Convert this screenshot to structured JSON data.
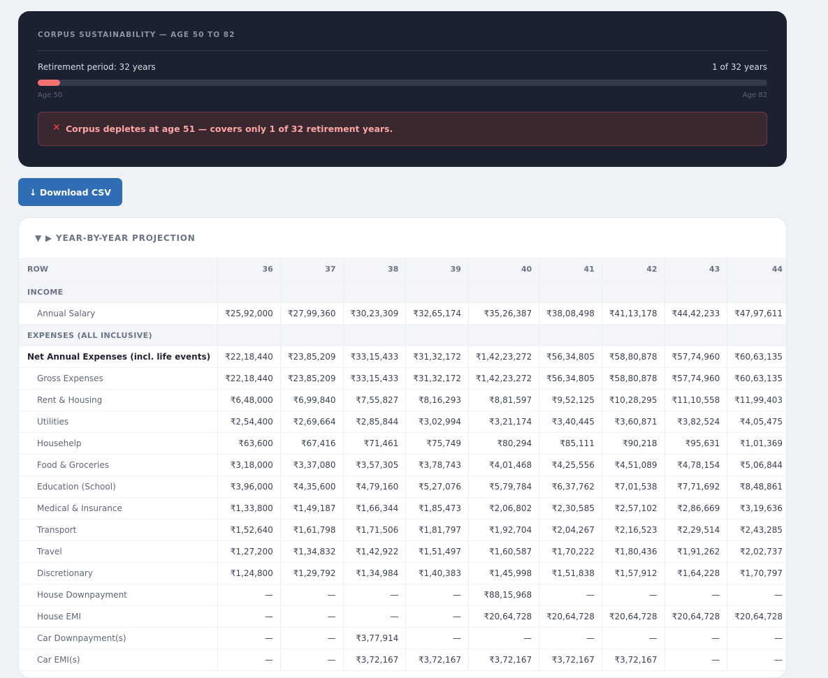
{
  "summary": {
    "title": "CORPUS SUSTAINABILITY — AGE 50 TO 82",
    "period_label": "Retirement period: 32 years",
    "years_label": "1 of 32 years",
    "start_label": "Age 50",
    "end_label": "Age 82",
    "alert": "Corpus depletes at age 51 — covers only 1 of 32 retirement years."
  },
  "actions": {
    "download": "↓ Download CSV"
  },
  "table": {
    "title": "▼ ▶ YEAR-BY-YEAR PROJECTION",
    "header": [
      "ROW",
      "36",
      "37",
      "38",
      "39",
      "40",
      "41",
      "42",
      "43",
      "44"
    ],
    "rows": [
      {
        "label": "INCOME",
        "style": "section"
      },
      {
        "label": "Annual Salary",
        "style": "sub",
        "cells": [
          "₹25,92,000",
          "₹27,99,360",
          "₹30,23,309",
          "₹32,65,174",
          "₹35,26,387",
          "₹38,08,498",
          "₹41,13,178",
          "₹44,42,233",
          "₹47,97,611"
        ]
      },
      {
        "label": "EXPENSES (ALL INCLUSIVE)",
        "style": "section"
      },
      {
        "label": "Net Annual Expenses (incl. life events)",
        "style": "bold",
        "cells": [
          "₹22,18,440",
          "₹23,85,209",
          "₹33,15,433",
          "₹31,32,172",
          "₹1,42,23,272",
          "₹56,34,805",
          "₹58,80,878",
          "₹57,74,960",
          "₹60,63,135"
        ]
      },
      {
        "label": "Gross Expenses",
        "style": "sub",
        "cells": [
          "₹22,18,440",
          "₹23,85,209",
          "₹33,15,433",
          "₹31,32,172",
          "₹1,42,23,272",
          "₹56,34,805",
          "₹58,80,878",
          "₹57,74,960",
          "₹60,63,135"
        ]
      },
      {
        "label": "Rent & Housing",
        "style": "sub",
        "cells": [
          "₹6,48,000",
          "₹6,99,840",
          "₹7,55,827",
          "₹8,16,293",
          "₹8,81,597",
          "₹9,52,125",
          "₹10,28,295",
          "₹11,10,558",
          "₹11,99,403"
        ]
      },
      {
        "label": "Utilities",
        "style": "sub",
        "cells": [
          "₹2,54,400",
          "₹2,69,664",
          "₹2,85,844",
          "₹3,02,994",
          "₹3,21,174",
          "₹3,40,445",
          "₹3,60,871",
          "₹3,82,524",
          "₹4,05,475"
        ]
      },
      {
        "label": "Househelp",
        "style": "sub",
        "cells": [
          "₹63,600",
          "₹67,416",
          "₹71,461",
          "₹75,749",
          "₹80,294",
          "₹85,111",
          "₹90,218",
          "₹95,631",
          "₹1,01,369"
        ]
      },
      {
        "label": "Food & Groceries",
        "style": "sub",
        "cells": [
          "₹3,18,000",
          "₹3,37,080",
          "₹3,57,305",
          "₹3,78,743",
          "₹4,01,468",
          "₹4,25,556",
          "₹4,51,089",
          "₹4,78,154",
          "₹5,06,844"
        ]
      },
      {
        "label": "Education (School)",
        "style": "sub",
        "cells": [
          "₹3,96,000",
          "₹4,35,600",
          "₹4,79,160",
          "₹5,27,076",
          "₹5,79,784",
          "₹6,37,762",
          "₹7,01,538",
          "₹7,71,692",
          "₹8,48,861"
        ]
      },
      {
        "label": "Medical & Insurance",
        "style": "sub",
        "cells": [
          "₹1,33,800",
          "₹1,49,187",
          "₹1,66,344",
          "₹1,85,473",
          "₹2,06,802",
          "₹2,30,585",
          "₹2,57,102",
          "₹2,86,669",
          "₹3,19,636"
        ]
      },
      {
        "label": "Transport",
        "style": "sub",
        "cells": [
          "₹1,52,640",
          "₹1,61,798",
          "₹1,71,506",
          "₹1,81,797",
          "₹1,92,704",
          "₹2,04,267",
          "₹2,16,523",
          "₹2,29,514",
          "₹2,43,285"
        ]
      },
      {
        "label": "Travel",
        "style": "sub",
        "cells": [
          "₹1,27,200",
          "₹1,34,832",
          "₹1,42,922",
          "₹1,51,497",
          "₹1,60,587",
          "₹1,70,222",
          "₹1,80,436",
          "₹1,91,262",
          "₹2,02,737"
        ]
      },
      {
        "label": "Discretionary",
        "style": "sub",
        "cells": [
          "₹1,24,800",
          "₹1,29,792",
          "₹1,34,984",
          "₹1,40,383",
          "₹1,45,998",
          "₹1,51,838",
          "₹1,57,912",
          "₹1,64,228",
          "₹1,70,797"
        ]
      },
      {
        "label": "House Downpayment",
        "style": "sub",
        "cells": [
          "—",
          "—",
          "—",
          "—",
          "₹88,15,968",
          "—",
          "—",
          "—",
          "—"
        ]
      },
      {
        "label": "House EMI",
        "style": "sub",
        "cells": [
          "—",
          "—",
          "—",
          "—",
          "₹20,64,728",
          "₹20,64,728",
          "₹20,64,728",
          "₹20,64,728",
          "₹20,64,728"
        ]
      },
      {
        "label": "Car Downpayment(s)",
        "style": "sub",
        "cells": [
          "—",
          "—",
          "₹3,77,914",
          "—",
          "—",
          "—",
          "—",
          "—",
          "—"
        ]
      },
      {
        "label": "Car EMI(s)",
        "style": "sub",
        "cells": [
          "—",
          "—",
          "₹3,72,167",
          "₹3,72,167",
          "₹3,72,167",
          "₹3,72,167",
          "₹3,72,167",
          "—",
          "—"
        ]
      }
    ]
  }
}
